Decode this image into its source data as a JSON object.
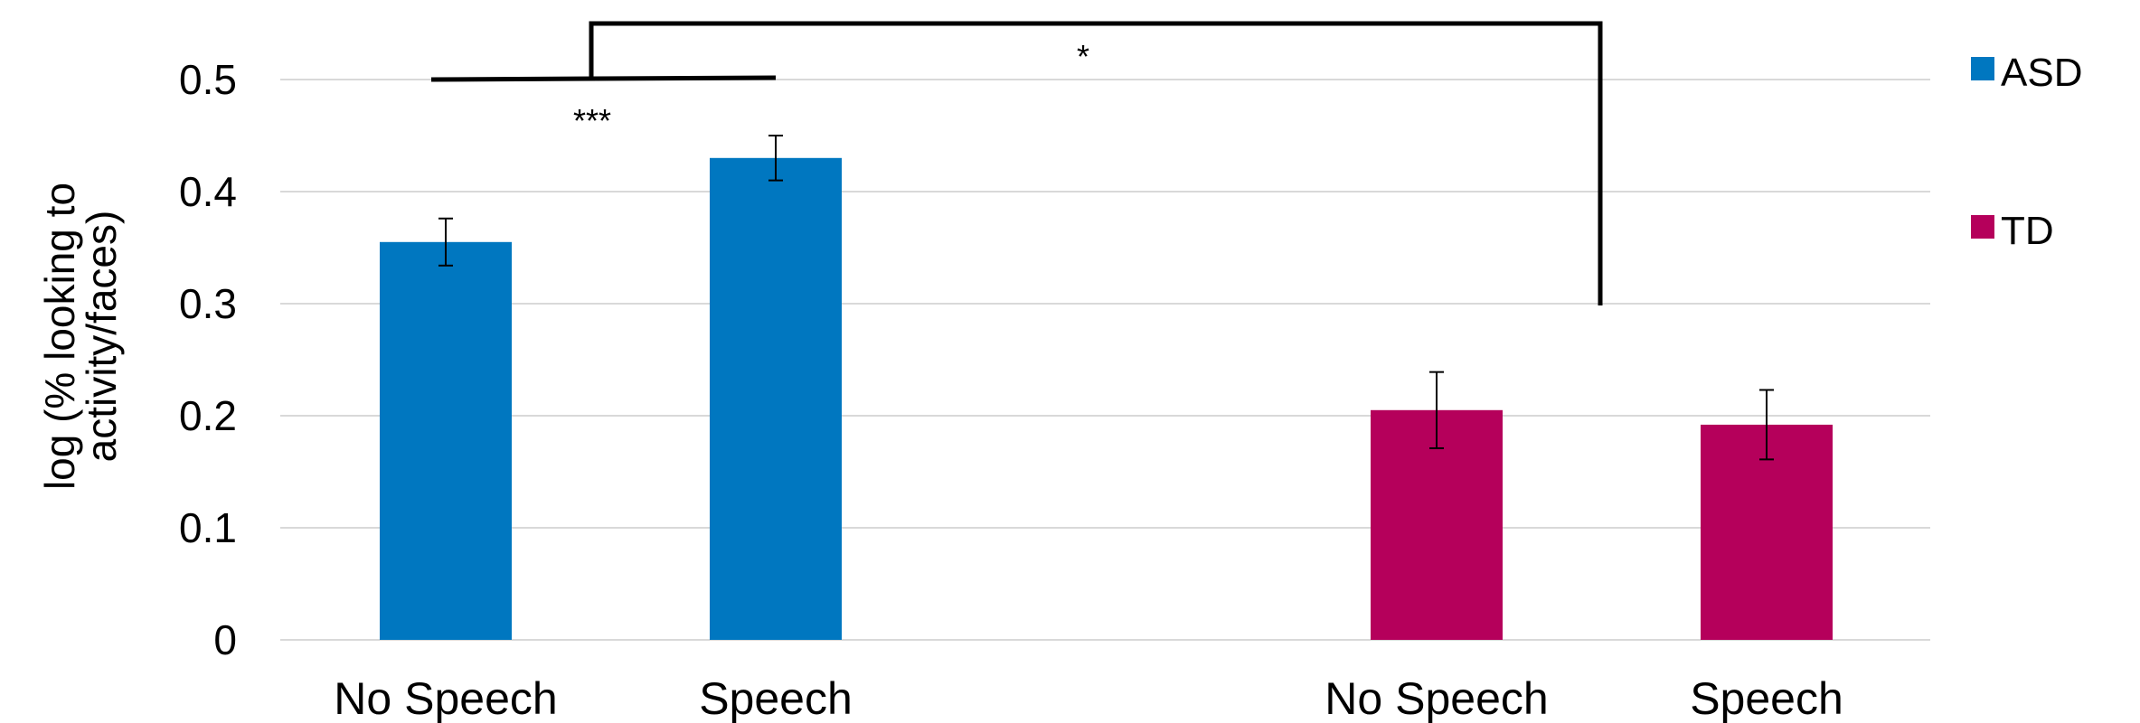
{
  "chart_data": {
    "type": "bar",
    "title": "",
    "ylabel_lines": [
      "log (% looking to",
      "activity/faces)"
    ],
    "xlabel": "",
    "ylim": [
      0,
      0.5
    ],
    "yticks": [
      "0",
      "0.1",
      "0.2",
      "0.3",
      "0.4",
      "0.5"
    ],
    "grid": true,
    "legend_position": "right",
    "groups": [
      {
        "name": "ASD",
        "color": "#0077C0",
        "categories": [
          "No Speech",
          "Speech"
        ],
        "values": [
          0.355,
          0.43
        ],
        "errors": [
          0.021,
          0.02
        ]
      },
      {
        "name": "TD",
        "color": "#B5005B",
        "categories": [
          "No Speech",
          "Speech"
        ],
        "values": [
          0.205,
          0.192
        ],
        "errors": [
          0.034,
          0.031
        ]
      }
    ],
    "annotations": [
      {
        "label": "***",
        "type": "bracket-within-ASD"
      },
      {
        "label": "*",
        "type": "bracket-ASD-vs-TD"
      }
    ]
  }
}
